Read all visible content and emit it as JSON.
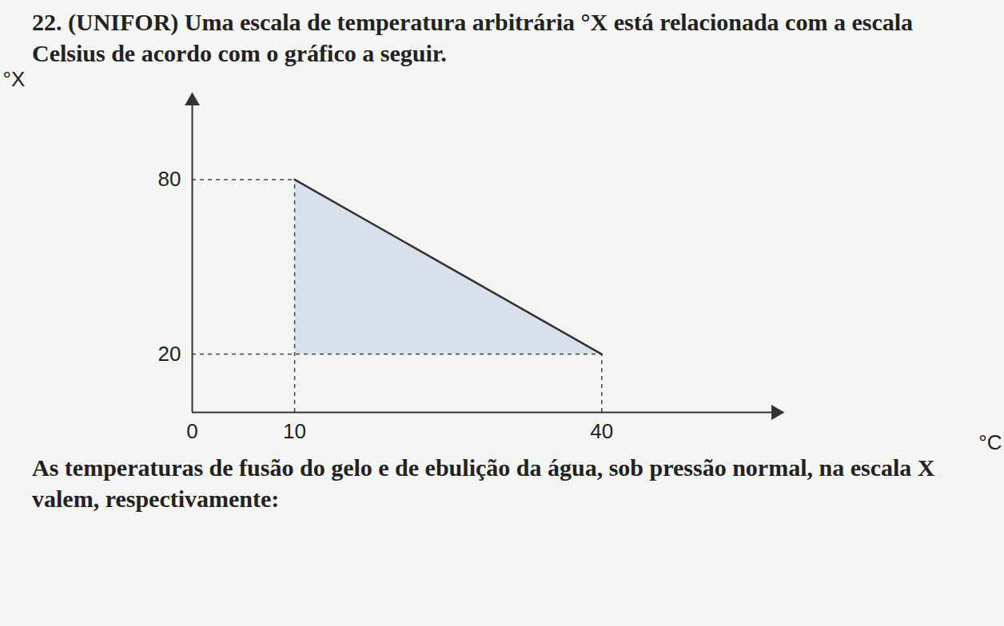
{
  "chart_data": {
    "type": "line",
    "title": "22. (UNIFOR) Uma escala de temperatura arbitrária °X está relacionada com a escala Celsius de acordo com o gráfico a seguir.",
    "caption": "As temperaturas de fusão do gelo e de ebulição da água, sob pressão normal, na escala X valem, respectivamente:",
    "x_label": "°C",
    "y_label": "°X",
    "x": [
      10,
      40
    ],
    "values": [
      80,
      20
    ],
    "xlim": [
      0,
      57
    ],
    "ylim": [
      0,
      107
    ],
    "xticks": [
      0,
      10,
      40
    ],
    "yticks": [
      20,
      80
    ],
    "color": "#333333",
    "line_style": "solid",
    "grid": false
  }
}
